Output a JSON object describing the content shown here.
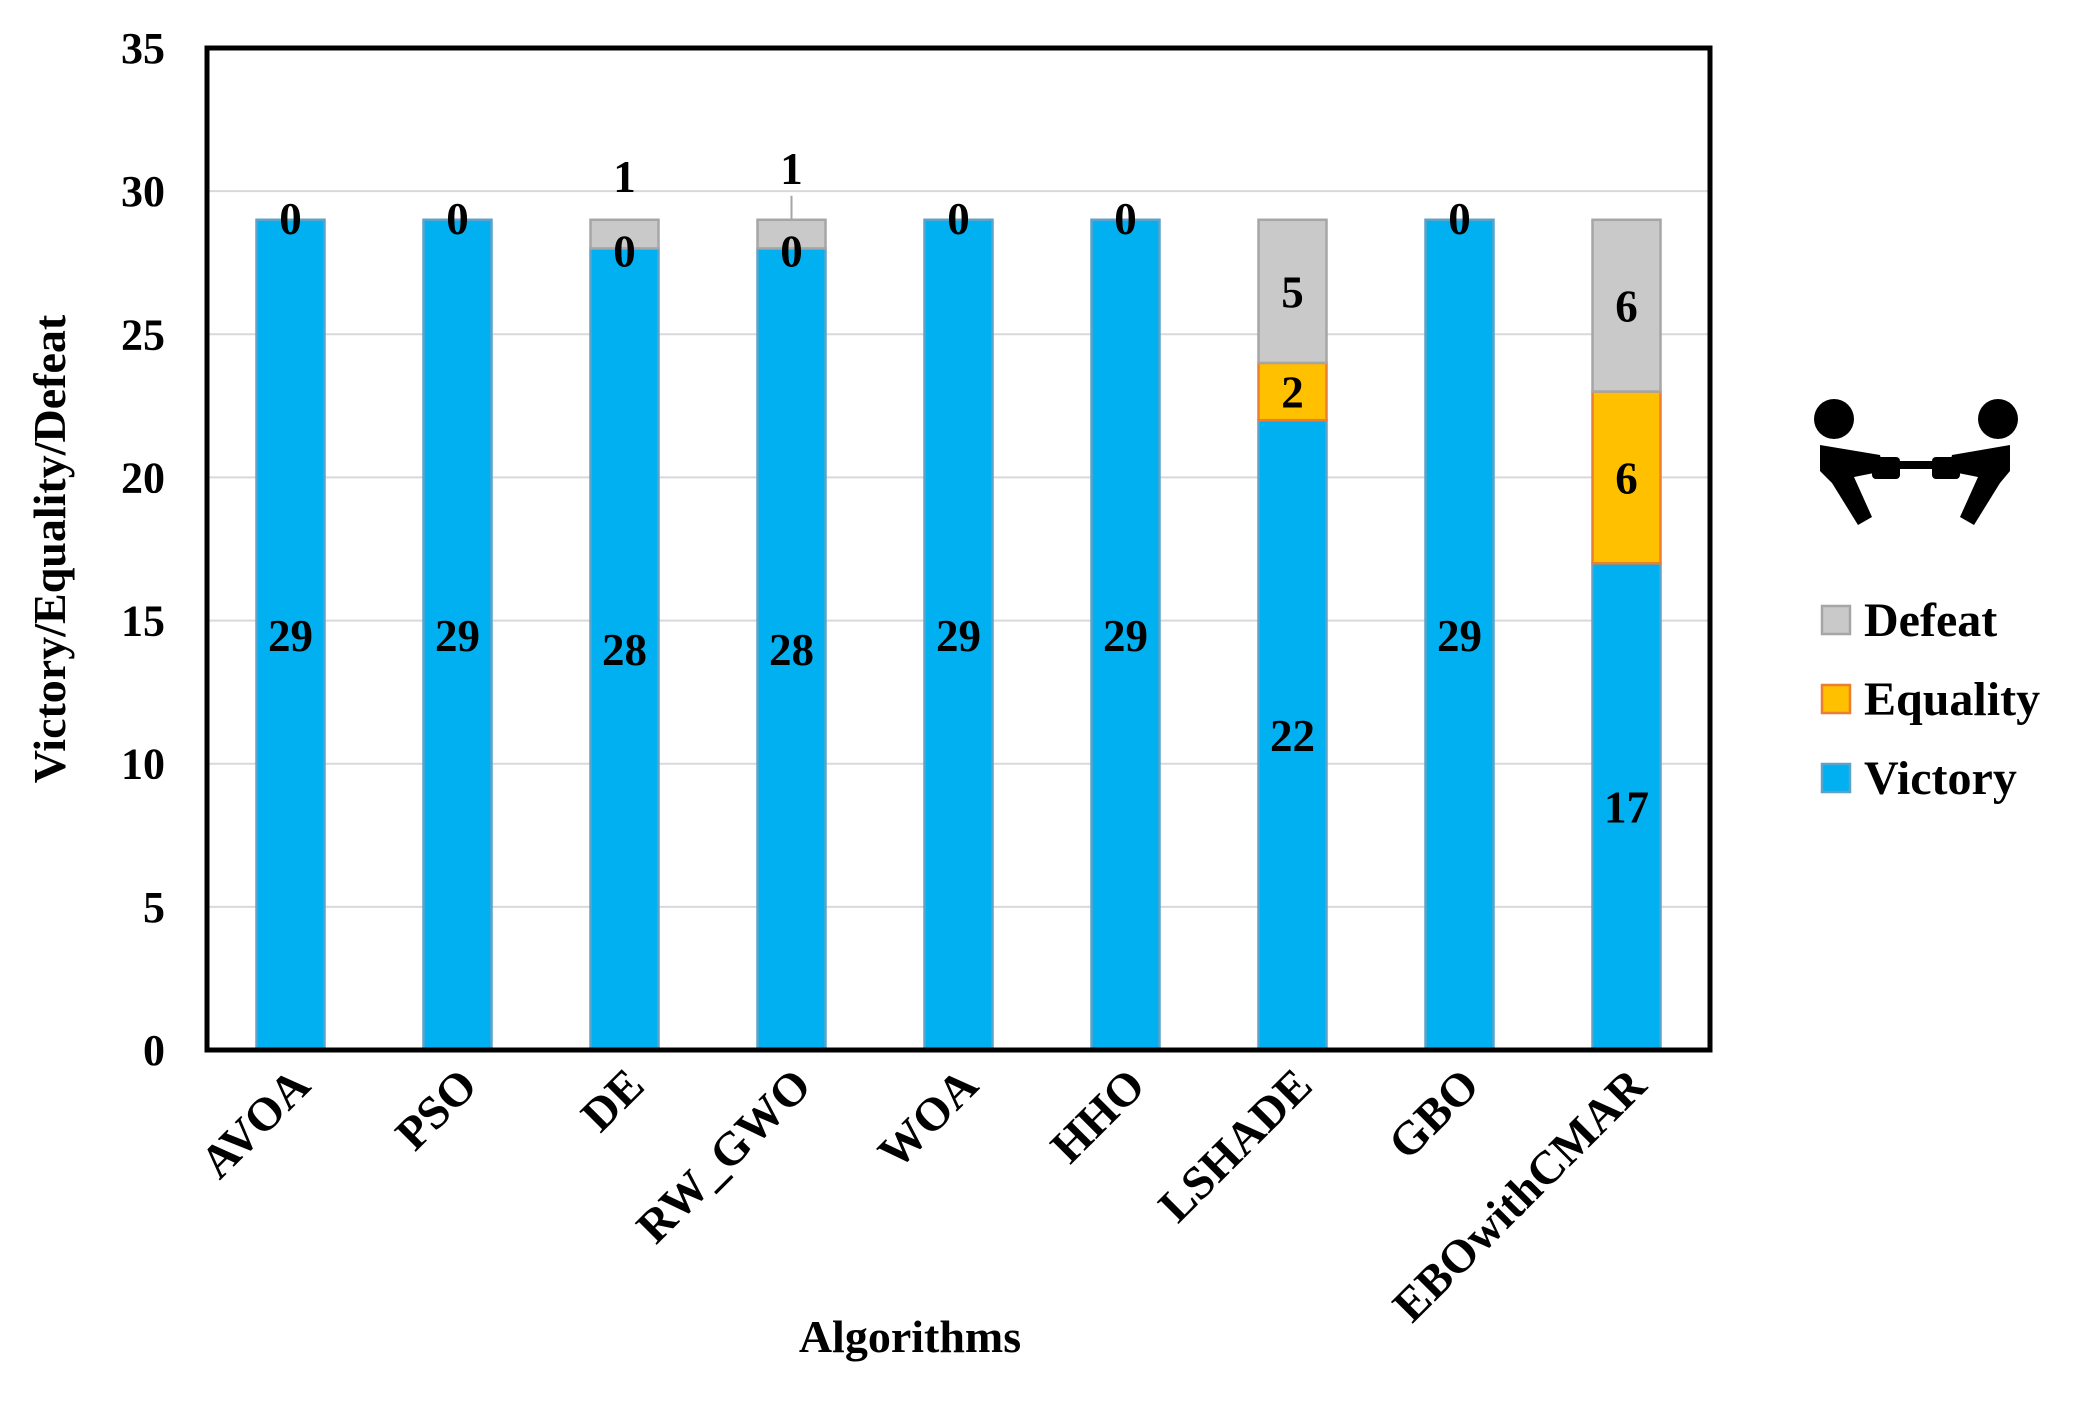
{
  "chart_data": {
    "type": "bar",
    "stacked": true,
    "categories": [
      "AVOA",
      "PSO",
      "DE",
      "RW_GWO",
      "WOA",
      "HHO",
      "LSHADE",
      "GBO",
      "EBOwithCMAR"
    ],
    "series": [
      {
        "name": "Victory",
        "values": [
          29,
          29,
          28,
          28,
          29,
          29,
          22,
          29,
          17
        ],
        "color": "#00B0F0",
        "stroke": "#5BA3C9"
      },
      {
        "name": "Equality",
        "values": [
          0,
          0,
          0,
          0,
          0,
          0,
          2,
          0,
          6
        ],
        "color": "#FFC000",
        "stroke": "#ED7D31"
      },
      {
        "name": "Defeat",
        "values": [
          0,
          0,
          1,
          1,
          0,
          0,
          5,
          0,
          6
        ],
        "color": "#C9C9C9",
        "stroke": "#A6A6A6"
      }
    ],
    "labels": {
      "Victory": [
        "29",
        "29",
        "28",
        "28",
        "29",
        "29",
        "22",
        "29",
        "17"
      ],
      "Equality": [
        "0",
        "0",
        "0",
        "0",
        "0",
        "0",
        "2",
        "0",
        "6"
      ],
      "Defeat": [
        "",
        "",
        "1",
        "1",
        "",
        "",
        "5",
        "",
        "6"
      ]
    },
    "title": "",
    "xlabel": "Algorithms",
    "ylabel": "Victory/Equality/Defeat",
    "ylim": [
      0,
      35
    ],
    "yticks": [
      "0",
      "5",
      "10",
      "15",
      "20",
      "25",
      "30",
      "35"
    ],
    "grid": true,
    "legend": {
      "placement": "right",
      "entries": [
        "Defeat",
        "Equality",
        "Victory"
      ]
    },
    "legend_icon": "tug-of-war-icon"
  }
}
